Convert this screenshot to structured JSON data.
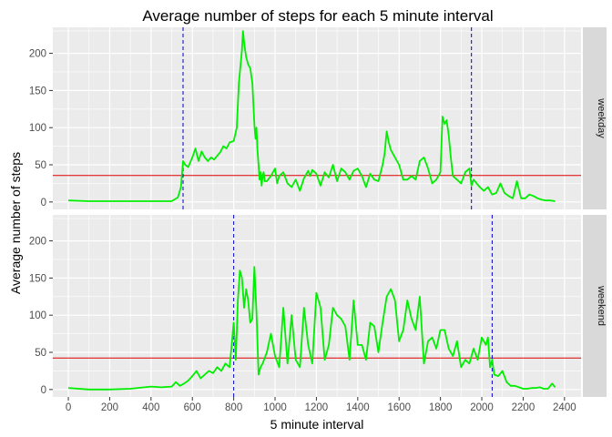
{
  "chart_data": {
    "type": "line",
    "title": "Average number of steps for each 5 minute interval",
    "xlabel": "5 minute interval",
    "ylabel": "Average number of steps",
    "xlim": [
      -75,
      2480
    ],
    "ylim": [
      -10,
      235
    ],
    "x_ticks": [
      0,
      200,
      400,
      600,
      800,
      1000,
      1200,
      1400,
      1600,
      1800,
      2000,
      2200,
      2400
    ],
    "y_ticks": [
      0,
      50,
      100,
      150,
      200
    ],
    "grid": true,
    "colors": {
      "line": "#00ee00",
      "mean": "#dd0000",
      "vline": "#0000cc",
      "panel": "#ebebeb",
      "strip": "#d9d9d9"
    },
    "panels": [
      {
        "facet": "weekday",
        "mean_line": 35.6,
        "vlines": [
          555,
          1950
        ],
        "x": [
          0,
          100,
          200,
          300,
          400,
          450,
          500,
          530,
          545,
          555,
          565,
          580,
          600,
          615,
          630,
          645,
          660,
          675,
          690,
          705,
          720,
          735,
          750,
          765,
          780,
          800,
          815,
          825,
          835,
          840,
          845,
          850,
          855,
          860,
          870,
          880,
          890,
          900,
          905,
          910,
          915,
          920,
          925,
          930,
          935,
          940,
          945,
          950,
          960,
          980,
          1000,
          1010,
          1020,
          1040,
          1060,
          1080,
          1100,
          1120,
          1140,
          1160,
          1170,
          1180,
          1200,
          1220,
          1240,
          1260,
          1280,
          1300,
          1320,
          1340,
          1360,
          1380,
          1400,
          1420,
          1440,
          1460,
          1480,
          1500,
          1520,
          1530,
          1540,
          1550,
          1560,
          1580,
          1600,
          1620,
          1640,
          1660,
          1680,
          1700,
          1720,
          1740,
          1760,
          1780,
          1800,
          1810,
          1820,
          1830,
          1840,
          1850,
          1860,
          1880,
          1900,
          1920,
          1940,
          1950,
          1960,
          1975,
          1990,
          2010,
          2030,
          2050,
          2070,
          2090,
          2110,
          2130,
          2150,
          2170,
          2190,
          2210,
          2230,
          2250,
          2270,
          2290,
          2310,
          2330,
          2355
        ],
        "y": [
          2,
          1,
          1,
          1,
          1,
          1,
          1,
          6,
          20,
          55,
          50,
          47,
          60,
          72,
          55,
          68,
          60,
          55,
          60,
          57,
          62,
          67,
          75,
          72,
          80,
          82,
          100,
          160,
          190,
          205,
          230,
          215,
          205,
          195,
          185,
          180,
          160,
          105,
          85,
          100,
          70,
          50,
          30,
          40,
          22,
          35,
          40,
          28,
          28,
          35,
          45,
          25,
          35,
          40,
          25,
          20,
          30,
          15,
          32,
          42,
          35,
          43,
          38,
          22,
          40,
          33,
          50,
          28,
          45,
          40,
          30,
          42,
          45,
          35,
          20,
          38,
          30,
          28,
          50,
          65,
          95,
          80,
          70,
          60,
          50,
          30,
          30,
          35,
          30,
          55,
          60,
          45,
          25,
          30,
          40,
          115,
          105,
          110,
          90,
          60,
          35,
          30,
          25,
          40,
          45,
          22,
          30,
          25,
          20,
          15,
          20,
          10,
          12,
          25,
          12,
          8,
          5,
          28,
          5,
          5,
          10,
          8,
          5,
          3,
          2,
          2,
          1
        ]
      },
      {
        "facet": "weekend",
        "mean_line": 42.4,
        "vlines": [
          800,
          2050
        ],
        "x": [
          0,
          100,
          200,
          300,
          400,
          450,
          500,
          520,
          540,
          560,
          580,
          600,
          620,
          640,
          660,
          680,
          700,
          720,
          740,
          760,
          780,
          790,
          800,
          810,
          820,
          830,
          840,
          850,
          860,
          870,
          880,
          890,
          900,
          910,
          920,
          930,
          940,
          960,
          980,
          1000,
          1020,
          1040,
          1060,
          1080,
          1100,
          1120,
          1140,
          1160,
          1180,
          1200,
          1220,
          1240,
          1260,
          1280,
          1300,
          1320,
          1340,
          1360,
          1380,
          1400,
          1420,
          1440,
          1460,
          1480,
          1500,
          1520,
          1540,
          1560,
          1580,
          1600,
          1620,
          1640,
          1660,
          1680,
          1700,
          1720,
          1740,
          1760,
          1780,
          1800,
          1820,
          1840,
          1860,
          1880,
          1900,
          1920,
          1940,
          1960,
          1980,
          2000,
          2020,
          2030,
          2040,
          2050,
          2060,
          2080,
          2100,
          2120,
          2140,
          2160,
          2180,
          2200,
          2220,
          2240,
          2260,
          2280,
          2300,
          2320,
          2340,
          2355
        ],
        "y": [
          2,
          0,
          0,
          1,
          4,
          3,
          4,
          10,
          5,
          8,
          12,
          18,
          25,
          15,
          20,
          25,
          22,
          30,
          25,
          35,
          30,
          60,
          90,
          40,
          120,
          160,
          150,
          110,
          135,
          120,
          90,
          95,
          165,
          105,
          20,
          30,
          35,
          50,
          75,
          45,
          30,
          110,
          35,
          100,
          40,
          30,
          110,
          60,
          35,
          130,
          110,
          40,
          60,
          110,
          100,
          95,
          85,
          40,
          120,
          60,
          60,
          40,
          90,
          85,
          50,
          90,
          125,
          135,
          120,
          65,
          80,
          120,
          95,
          80,
          125,
          35,
          65,
          70,
          55,
          80,
          80,
          55,
          45,
          65,
          30,
          40,
          35,
          55,
          40,
          70,
          60,
          70,
          30,
          40,
          20,
          18,
          25,
          10,
          5,
          5,
          3,
          1,
          1,
          2,
          2,
          3,
          1,
          1,
          8,
          3
        ]
      }
    ]
  }
}
